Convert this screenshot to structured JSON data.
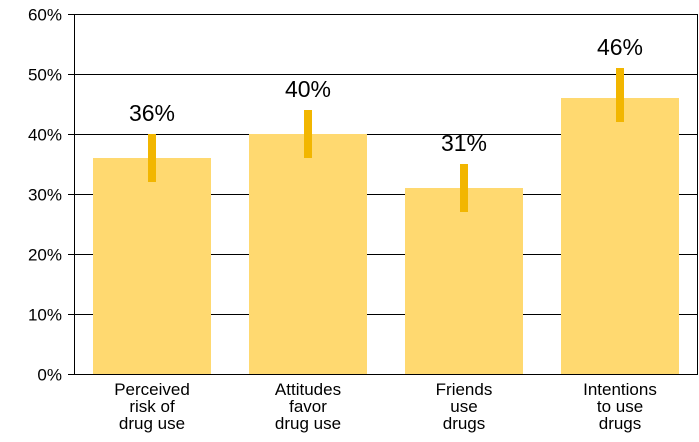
{
  "chart_data": {
    "type": "bar",
    "categories": [
      [
        "Perceived",
        "risk of",
        "drug use"
      ],
      [
        "Attitudes",
        "favor",
        "drug use"
      ],
      [
        "Friends",
        "use",
        "drugs"
      ],
      [
        "Intentions",
        "to use",
        "drugs"
      ]
    ],
    "values": [
      36,
      40,
      31,
      46
    ],
    "error_bars": [
      [
        32,
        40
      ],
      [
        36,
        44
      ],
      [
        27,
        35
      ],
      [
        42,
        51
      ]
    ],
    "data_labels": [
      "36%",
      "40%",
      "31%",
      "46%"
    ],
    "y_ticks": [
      "0%",
      "10%",
      "20%",
      "30%",
      "40%",
      "50%",
      "60%"
    ],
    "ylim": [
      0,
      60
    ],
    "grid": true,
    "legend": "none",
    "title": "",
    "xlabel": "",
    "ylabel": "",
    "colors": {
      "bar": "#FFD970",
      "error_bar": "#F2B600",
      "grid": "#000000"
    }
  }
}
